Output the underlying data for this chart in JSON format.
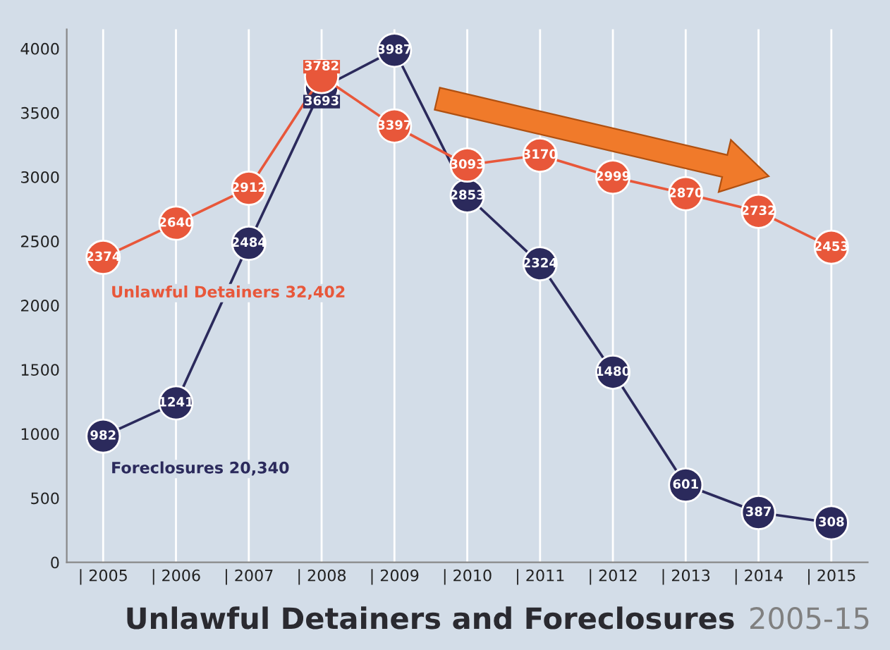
{
  "chart_data": {
    "type": "line",
    "title": "Unlawful Detainers and Foreclosures",
    "subtitle": "2005-15",
    "x": [
      2005,
      2006,
      2007,
      2008,
      2009,
      2010,
      2011,
      2012,
      2013,
      2014,
      2015
    ],
    "series": [
      {
        "color": "#e8573a",
        "values": [
          2374,
          2640,
          2912,
          3782,
          3397,
          3093,
          3170,
          2999,
          2870,
          2732,
          2453
        ]
      },
      {
        "color": "#2b2a5c",
        "values": [
          982,
          1241,
          2484,
          3693,
          3987,
          2853,
          2324,
          1480,
          601,
          387,
          308
        ]
      }
    ],
    "annotations": [
      "Unlawful Detainers 32,402",
      "Foreclosures 20,340"
    ],
    "xlim": [
      2004.5,
      2015.5
    ],
    "ylim": [
      0,
      4150
    ],
    "xticks": [
      {
        "value": 2005,
        "label": "| 2005"
      },
      {
        "value": 2006,
        "label": "| 2006"
      },
      {
        "value": 2007,
        "label": "| 2007"
      },
      {
        "value": 2008,
        "label": "| 2008"
      },
      {
        "value": 2009,
        "label": "| 2009"
      },
      {
        "value": 2010,
        "label": "| 2010"
      },
      {
        "value": 2011,
        "label": "| 2011"
      },
      {
        "value": 2012,
        "label": "| 2012"
      },
      {
        "value": 2013,
        "label": "| 2013"
      },
      {
        "value": 2014,
        "label": "| 2014"
      },
      {
        "value": 2015,
        "label": "| 2015"
      }
    ],
    "yticks": [
      0,
      500,
      1000,
      1500,
      2000,
      2500,
      3000,
      3500,
      4000
    ],
    "grid": "x",
    "marker": "circle",
    "line_style": "solid",
    "data_labels": true,
    "legend": false
  }
}
